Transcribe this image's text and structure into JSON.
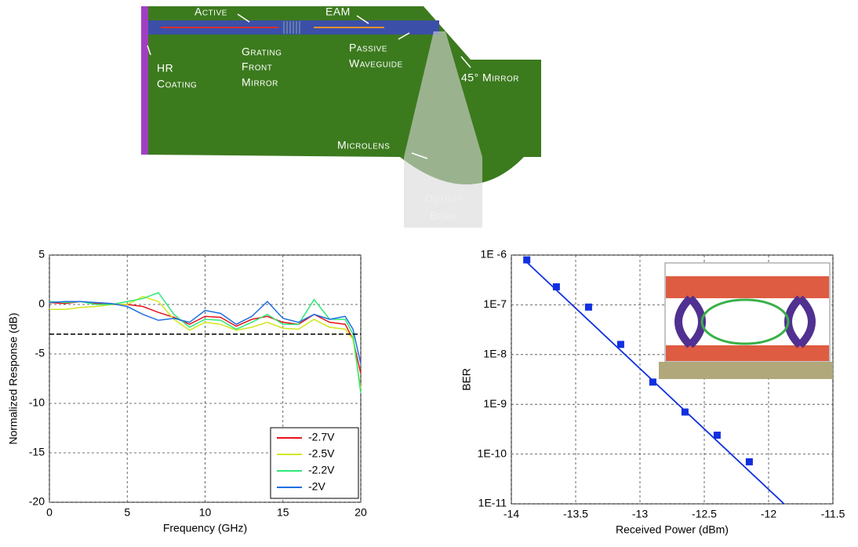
{
  "diagram": {
    "active": "Active",
    "eam": "EAM",
    "grating_front_mirror": [
      "Grating",
      "Front",
      "Mirror"
    ],
    "passive_waveguide": [
      "Passive",
      "Waveguide"
    ],
    "hr_coating": [
      "HR",
      "Coating"
    ],
    "mirror_45": "45° Mirror",
    "microlens": "Microlens",
    "output_beam": [
      "Output",
      "Beam"
    ]
  },
  "chart_data": [
    {
      "type": "line",
      "xlabel": "Frequency (GHz)",
      "ylabel": "Normalized Response (dB)",
      "x": [
        0,
        1,
        2,
        3,
        4,
        5,
        6,
        7,
        8,
        9,
        10,
        11,
        12,
        13,
        14,
        15,
        16,
        17,
        18,
        19,
        19.5,
        20
      ],
      "series": [
        {
          "name": "-2.7V",
          "color": "#e8141c",
          "values": [
            0.2,
            0.1,
            0.3,
            0.1,
            0,
            0,
            -0.2,
            -0.8,
            -1.3,
            -2.0,
            -1.2,
            -1.3,
            -2.2,
            -1.5,
            -1.2,
            -1.8,
            -2.0,
            -1.0,
            -1.8,
            -2.0,
            -3.5,
            -7
          ]
        },
        {
          "name": "-2.5V",
          "color": "#d2e61e",
          "values": [
            -0.5,
            -0.5,
            -0.3,
            -0.2,
            0,
            0,
            0.8,
            0.3,
            -1.5,
            -2.6,
            -1.8,
            -2.0,
            -2.6,
            -2.3,
            -1.8,
            -2.4,
            -2.5,
            -1.5,
            -2.3,
            -2.5,
            -3.5,
            -8.5
          ]
        },
        {
          "name": "-2.2V",
          "color": "#2ee878",
          "values": [
            0.3,
            0.2,
            0.3,
            0,
            0,
            0.3,
            0.6,
            1.2,
            -1.0,
            -2.3,
            -1.5,
            -1.6,
            -2.5,
            -1.8,
            -1.0,
            -2.0,
            -2.0,
            0.5,
            -1.5,
            -1.5,
            -3,
            -9
          ]
        },
        {
          "name": "-2V",
          "color": "#1f6fe0",
          "values": [
            0.2,
            0.3,
            0.3,
            0.2,
            0.1,
            -0.2,
            -1.0,
            -1.6,
            -1.4,
            -1.8,
            -0.6,
            -0.9,
            -2.0,
            -1.2,
            0.3,
            -1.4,
            -1.8,
            -1.0,
            -1.5,
            -1.2,
            -2.5,
            -6
          ]
        }
      ],
      "reference_line": {
        "value": -3,
        "color": "#000000"
      },
      "xlim": [
        0,
        20
      ],
      "xticks": [
        0,
        5,
        10,
        15,
        20
      ],
      "ylim": [
        -20,
        5
      ],
      "yticks": [
        -20,
        -15,
        -10,
        -5,
        0,
        5
      ],
      "grid": true,
      "legend": "lower right"
    },
    {
      "type": "scatter",
      "xlabel": "Received Power (dBm)",
      "ylabel": "BER",
      "log_y": true,
      "series": [
        {
          "kind": "points",
          "color": "#1030e0",
          "x": [
            -13.88,
            -13.65,
            -13.4,
            -13.15,
            -12.9,
            -12.65,
            -12.4,
            -12.15
          ],
          "values": [
            8e-07,
            2.3e-07,
            9e-08,
            1.6e-08,
            2.8e-09,
            7e-10,
            2.4e-10,
            7e-11
          ]
        },
        {
          "kind": "line",
          "color": "#1030e0",
          "x": [
            -13.9,
            -11.88
          ],
          "values": [
            8e-07,
            1e-11
          ]
        }
      ],
      "xlim": [
        -14,
        -11.5
      ],
      "xticks": [
        -14,
        -13.5,
        -13,
        -12.5,
        -12,
        -11.5
      ],
      "ylim": [
        1e-11,
        1e-06
      ],
      "yticks": [
        {
          "value": 1e-11,
          "label": "1E-11"
        },
        {
          "value": 1e-10,
          "label": "1E-10"
        },
        {
          "value": 1e-09,
          "label": "1E-9"
        },
        {
          "value": 1e-08,
          "label": "1E-8"
        },
        {
          "value": 1e-07,
          "label": "1E-7"
        },
        {
          "value": 1e-06,
          "label": "1E -6"
        }
      ],
      "grid": true
    }
  ]
}
